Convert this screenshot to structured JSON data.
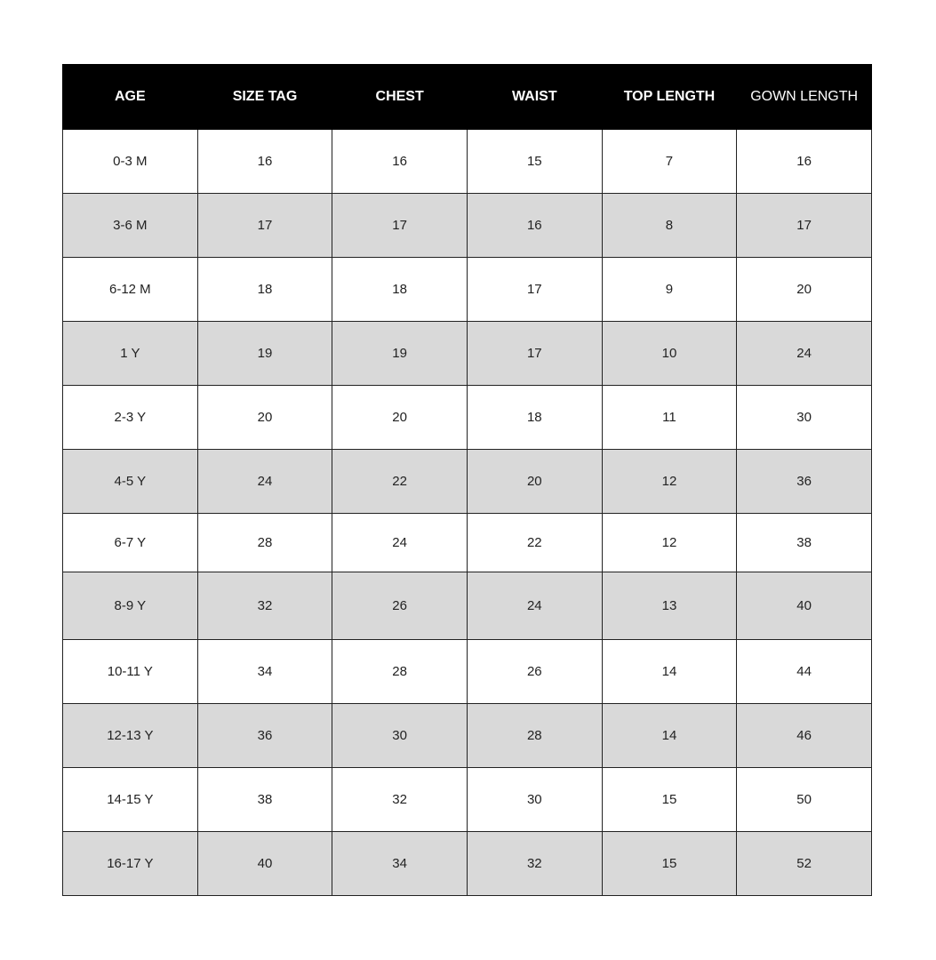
{
  "table": {
    "headers": [
      "AGE",
      "SIZE TAG",
      "CHEST",
      "WAIST",
      "TOP LENGTH",
      "GOWN LENGTH"
    ],
    "rows": [
      [
        "0-3 M",
        "16",
        "16",
        "15",
        "7",
        "16"
      ],
      [
        "3-6 M",
        "17",
        "17",
        "16",
        "8",
        "17"
      ],
      [
        "6-12 M",
        "18",
        "18",
        "17",
        "9",
        "20"
      ],
      [
        "1 Y",
        "19",
        "19",
        "17",
        "10",
        "24"
      ],
      [
        "2-3 Y",
        "20",
        "20",
        "18",
        "11",
        "30"
      ],
      [
        "4-5 Y",
        "24",
        "22",
        "20",
        "12",
        "36"
      ],
      [
        "6-7 Y",
        "28",
        "24",
        "22",
        "12",
        "38"
      ],
      [
        "8-9 Y",
        "32",
        "26",
        "24",
        "13",
        "40"
      ],
      [
        "10-11 Y",
        "34",
        "28",
        "26",
        "14",
        "44"
      ],
      [
        "12-13 Y",
        "36",
        "30",
        "28",
        "14",
        "46"
      ],
      [
        "14-15 Y",
        "38",
        "32",
        "30",
        "15",
        "50"
      ],
      [
        "16-17 Y",
        "40",
        "34",
        "32",
        "15",
        "52"
      ]
    ]
  },
  "colors": {
    "header_bg": "#000000",
    "header_text": "#ffffff",
    "stripe": "#d9d9d9"
  }
}
